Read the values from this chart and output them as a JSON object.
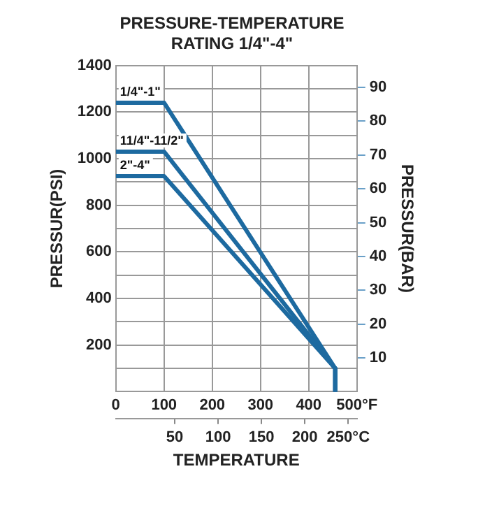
{
  "chart_data": {
    "type": "line",
    "title": [
      "PRESSURE-TEMPERATURE",
      "RATING 1/4\"-4\""
    ],
    "xlabel": "TEMPERATURE",
    "ylabel": "PRESSUR(PSI)",
    "y2label": "PRESSUR(BAR)",
    "series": [
      {
        "name": "1/4\"-1\"",
        "color": "#1d6aa0",
        "x": [
          0,
          100,
          455,
          455
        ],
        "values": [
          1240,
          1240,
          100,
          0
        ]
      },
      {
        "name": "11/4\"-11/2\"",
        "color": "#1d6aa0",
        "x": [
          0,
          100,
          455,
          455
        ],
        "values": [
          1030,
          1030,
          100,
          0
        ]
      },
      {
        "name": "2\"-4\"",
        "color": "#1d6aa0",
        "x": [
          0,
          100,
          455,
          455
        ],
        "values": [
          925,
          925,
          100,
          0
        ]
      }
    ],
    "xlim": [
      0,
      500
    ],
    "xticks": [
      0,
      100,
      200,
      300,
      400,
      {
        "value": 500,
        "label": "500°F"
      }
    ],
    "x2lim": [
      -17.8,
      260
    ],
    "x2ticks": [
      50,
      100,
      150,
      200,
      {
        "value": 250,
        "label": "250°C"
      }
    ],
    "ylim": [
      0,
      1400
    ],
    "yticks": [
      {
        "value": 100,
        "label": null
      },
      200,
      {
        "value": 300,
        "label": null
      },
      400,
      {
        "value": 500,
        "label": null
      },
      600,
      {
        "value": 700,
        "label": null
      },
      800,
      {
        "value": 900,
        "label": null
      },
      1000,
      {
        "value": 1100,
        "label": null
      },
      1200,
      {
        "value": 1300,
        "label": null
      },
      1400
    ],
    "y2lim": [
      0,
      96.5
    ],
    "y2ticks": [
      10,
      20,
      30,
      40,
      50,
      60,
      70,
      80,
      90
    ],
    "grid": true,
    "legend": false,
    "marker": "none",
    "line_style": "solid"
  }
}
